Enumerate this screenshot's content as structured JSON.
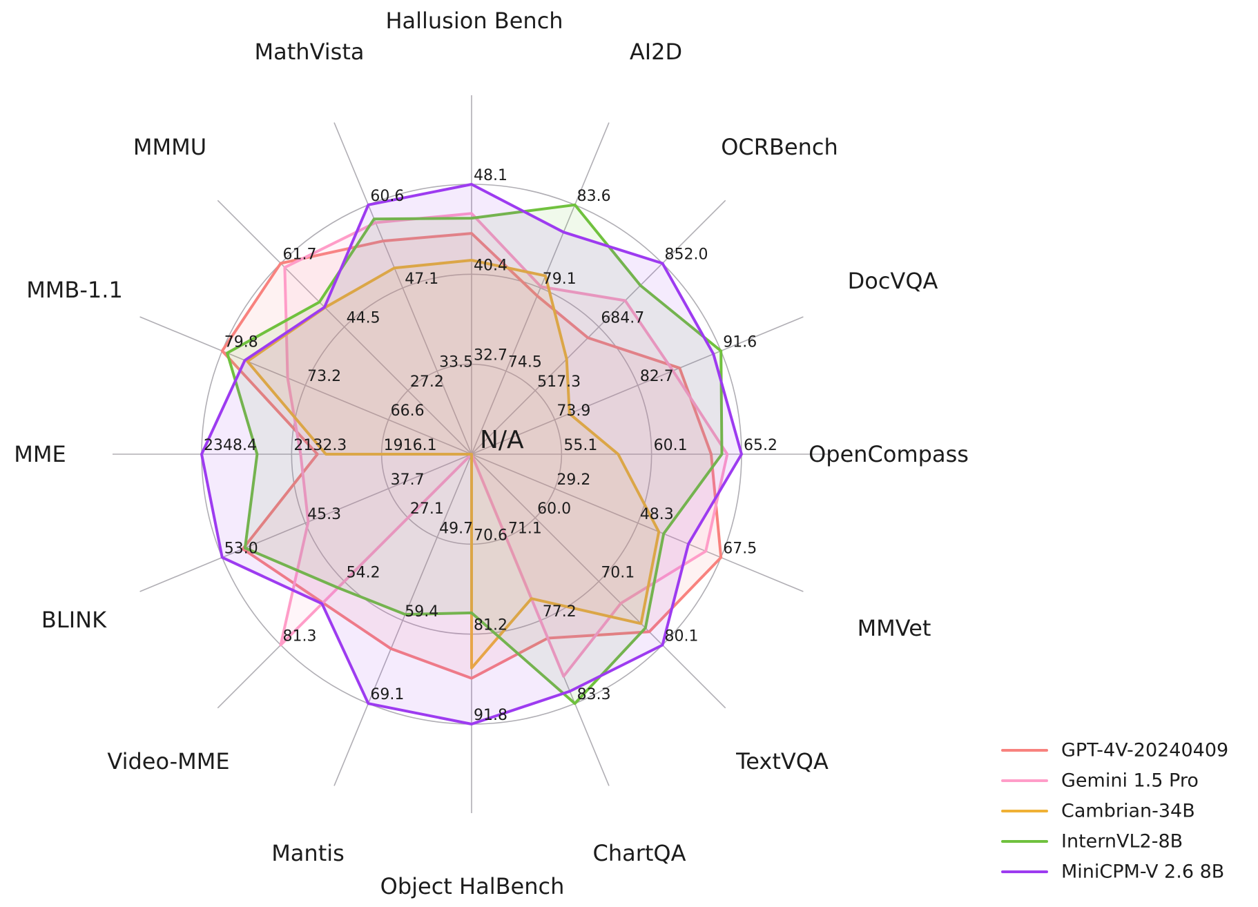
{
  "chart_data": {
    "type": "radar",
    "title": "",
    "center_label": "N/A",
    "grid": {
      "rings": 3,
      "spokes": 16,
      "color": "#b0aeb4"
    },
    "legend_position": "lower right",
    "axes": [
      {
        "name": "Hallusion Bench",
        "ticks": [
          32.7,
          40.4,
          48.1
        ]
      },
      {
        "name": "AI2D",
        "ticks": [
          74.5,
          79.1,
          83.6
        ]
      },
      {
        "name": "OCRBench",
        "ticks": [
          517.3,
          684.7,
          852.0
        ]
      },
      {
        "name": "DocVQA",
        "ticks": [
          73.9,
          82.7,
          91.6
        ]
      },
      {
        "name": "OpenCompass",
        "ticks": [
          55.1,
          60.1,
          65.2
        ]
      },
      {
        "name": "MMVet",
        "ticks": [
          29.2,
          48.3,
          67.5
        ]
      },
      {
        "name": "TextVQA",
        "ticks": [
          60.0,
          70.1,
          80.1
        ]
      },
      {
        "name": "ChartQA",
        "ticks": [
          71.1,
          77.2,
          83.3
        ]
      },
      {
        "name": "Object HalBench",
        "ticks": [
          70.6,
          81.2,
          91.8
        ]
      },
      {
        "name": "Mantis",
        "ticks": [
          49.7,
          59.4,
          69.1
        ]
      },
      {
        "name": "Video-MME",
        "ticks": [
          27.1,
          54.2,
          81.3
        ]
      },
      {
        "name": "BLINK",
        "ticks": [
          37.7,
          45.3,
          53.0
        ]
      },
      {
        "name": "MME",
        "ticks": [
          1916.1,
          2132.3,
          2348.4
        ]
      },
      {
        "name": "MMB-1.1",
        "ticks": [
          66.6,
          73.2,
          79.8
        ]
      },
      {
        "name": "MMMU",
        "ticks": [
          27.2,
          44.5,
          61.7
        ]
      },
      {
        "name": "MathVista",
        "ticks": [
          33.5,
          47.1,
          60.6
        ]
      }
    ],
    "series": [
      {
        "name": "GPT-4V-20240409",
        "color": "#f8827e",
        "values": [
          43.9,
          78.6,
          656.0,
          87.2,
          63.5,
          67.5,
          78.0,
          78.5,
          86.4,
          62.7,
          63.3,
          51.1,
          2070.2,
          79.8,
          61.7,
          54.7
        ]
      },
      {
        "name": "Gemini 1.5 Pro",
        "color": "#ff9dc8",
        "values": [
          45.6,
          79.1,
          754.0,
          86.5,
          64.4,
          64.0,
          73.5,
          81.3,
          null,
          null,
          81.3,
          45.1,
          2110.6,
          74.6,
          60.6,
          57.7
        ]
      },
      {
        "name": "Cambrian-34B",
        "color": "#f0b135",
        "values": [
          41.6,
          79.7,
          600.0,
          75.5,
          58.3,
          53.2,
          76.7,
          75.6,
          85.2,
          null,
          null,
          null,
          2049.9,
          77.8,
          49.7,
          50.3
        ]
      },
      {
        "name": "InternVL2-8B",
        "color": "#70c13e",
        "values": [
          45.2,
          83.6,
          794.0,
          91.6,
          64.1,
          54.3,
          77.4,
          83.3,
          78.7,
          58.7,
          56.9,
          50.9,
          2215.1,
          79.4,
          51.2,
          58.3
        ]
      },
      {
        "name": "MiniCPM-V 2.6 8B",
        "color": "#9d3bf0",
        "values": [
          48.1,
          82.1,
          852.0,
          90.8,
          65.2,
          60.0,
          80.1,
          82.4,
          91.8,
          69.1,
          63.7,
          53.0,
          2348.4,
          78.0,
          49.8,
          60.6
        ]
      }
    ]
  }
}
